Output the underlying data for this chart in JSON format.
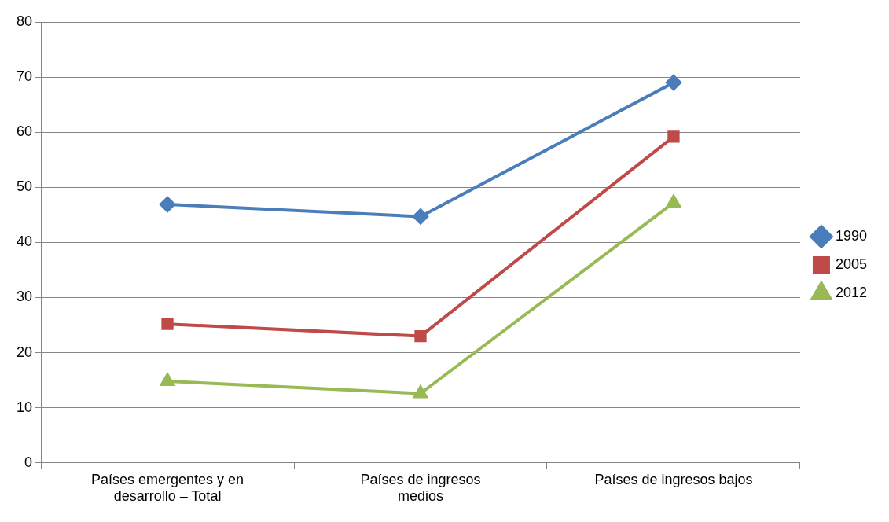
{
  "chart_data": {
    "type": "line",
    "categories": [
      "Países emergentes y en desarrollo – Total",
      "Países de ingresos medios",
      "Países de ingresos bajos"
    ],
    "series": [
      {
        "name": "1990",
        "color": "#4a7ebb",
        "marker": "diamond",
        "values": [
          46.9,
          44.7,
          69
        ]
      },
      {
        "name": "2005",
        "color": "#be4b48",
        "marker": "square",
        "values": [
          25.2,
          23,
          59.2
        ]
      },
      {
        "name": "2012",
        "color": "#98b954",
        "marker": "triangle",
        "values": [
          14.8,
          12.6,
          47.2
        ]
      }
    ],
    "ylim": [
      0,
      80
    ],
    "yticks": [
      0,
      10,
      20,
      30,
      40,
      50,
      60,
      70,
      80
    ],
    "grid": "y",
    "legend": "right"
  }
}
